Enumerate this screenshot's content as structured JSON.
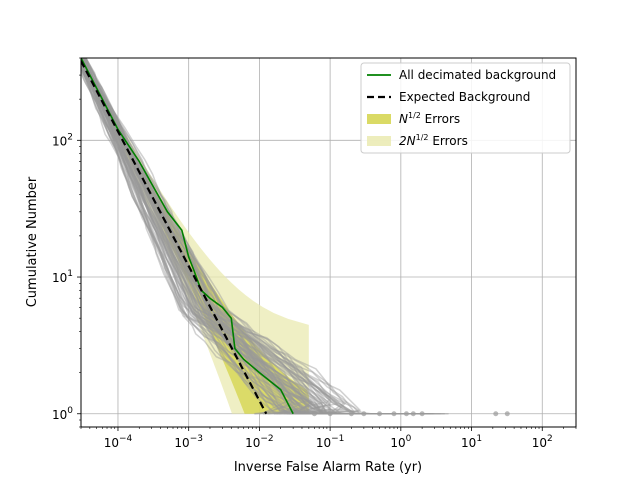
{
  "chart_data": {
    "type": "line",
    "xlabel": "Inverse False Alarm Rate (yr)",
    "ylabel": "Cumulative Number",
    "xscale": "log",
    "yscale": "log",
    "xlim": [
      3e-05,
      300
    ],
    "ylim": [
      0.8,
      400
    ],
    "xticks": [
      {
        "value": 0.0001,
        "base": "10",
        "exp": "−4"
      },
      {
        "value": 0.001,
        "base": "10",
        "exp": "−3"
      },
      {
        "value": 0.01,
        "base": "10",
        "exp": "−2"
      },
      {
        "value": 0.1,
        "base": "10",
        "exp": "−1"
      },
      {
        "value": 1,
        "base": "10",
        "exp": "0"
      },
      {
        "value": 10,
        "base": "10",
        "exp": "1"
      },
      {
        "value": 100,
        "base": "10",
        "exp": "2"
      }
    ],
    "yticks": [
      {
        "value": 1,
        "base": "10",
        "exp": "0"
      },
      {
        "value": 10,
        "base": "10",
        "exp": "1"
      },
      {
        "value": 100,
        "base": "10",
        "exp": "2"
      }
    ],
    "grid": true,
    "legend_position": "upper right",
    "legend": [
      {
        "label": "All decimated background",
        "style": "line",
        "color": "#008000"
      },
      {
        "label": "Expected Background",
        "style": "dashed",
        "color": "#000000"
      },
      {
        "label": "N",
        "sup": "1/2",
        "suffix": " Errors",
        "style": "patch",
        "color": "#d4d44a"
      },
      {
        "label": "2N",
        "sup": "1/2",
        "suffix": " Errors",
        "style": "patch",
        "color": "#eaeab0"
      }
    ],
    "series": [
      {
        "name": "All decimated background",
        "color": "#008000",
        "points": [
          [
            3e-05,
            400
          ],
          [
            4e-05,
            300
          ],
          [
            6e-05,
            200
          ],
          [
            0.0001,
            120
          ],
          [
            0.0002,
            70
          ],
          [
            0.0003,
            48
          ],
          [
            0.0005,
            30
          ],
          [
            0.0008,
            22
          ],
          [
            0.001,
            14
          ],
          [
            0.0012,
            11
          ],
          [
            0.0015,
            8
          ],
          [
            0.002,
            7
          ],
          [
            0.003,
            6
          ],
          [
            0.004,
            5
          ],
          [
            0.0045,
            3
          ],
          [
            0.006,
            2.5
          ],
          [
            0.01,
            2
          ],
          [
            0.02,
            1.5
          ],
          [
            0.03,
            1
          ]
        ]
      },
      {
        "name": "Expected Background",
        "color": "#000000",
        "points": [
          [
            3e-05,
            380
          ],
          [
            0.0125,
            1
          ]
        ]
      }
    ],
    "background_trials": {
      "color": "#9a9a9a",
      "count": 80,
      "description_points_end_range": [
        0.008,
        5
      ]
    },
    "outlier_points": [
      [
        0.06,
        1
      ],
      [
        0.1,
        1
      ],
      [
        0.2,
        1
      ],
      [
        0.3,
        1
      ],
      [
        0.5,
        1
      ],
      [
        0.8,
        1
      ],
      [
        1.2,
        1
      ],
      [
        1.5,
        1
      ],
      [
        2,
        1
      ],
      [
        22,
        1
      ],
      [
        32,
        1
      ]
    ]
  }
}
